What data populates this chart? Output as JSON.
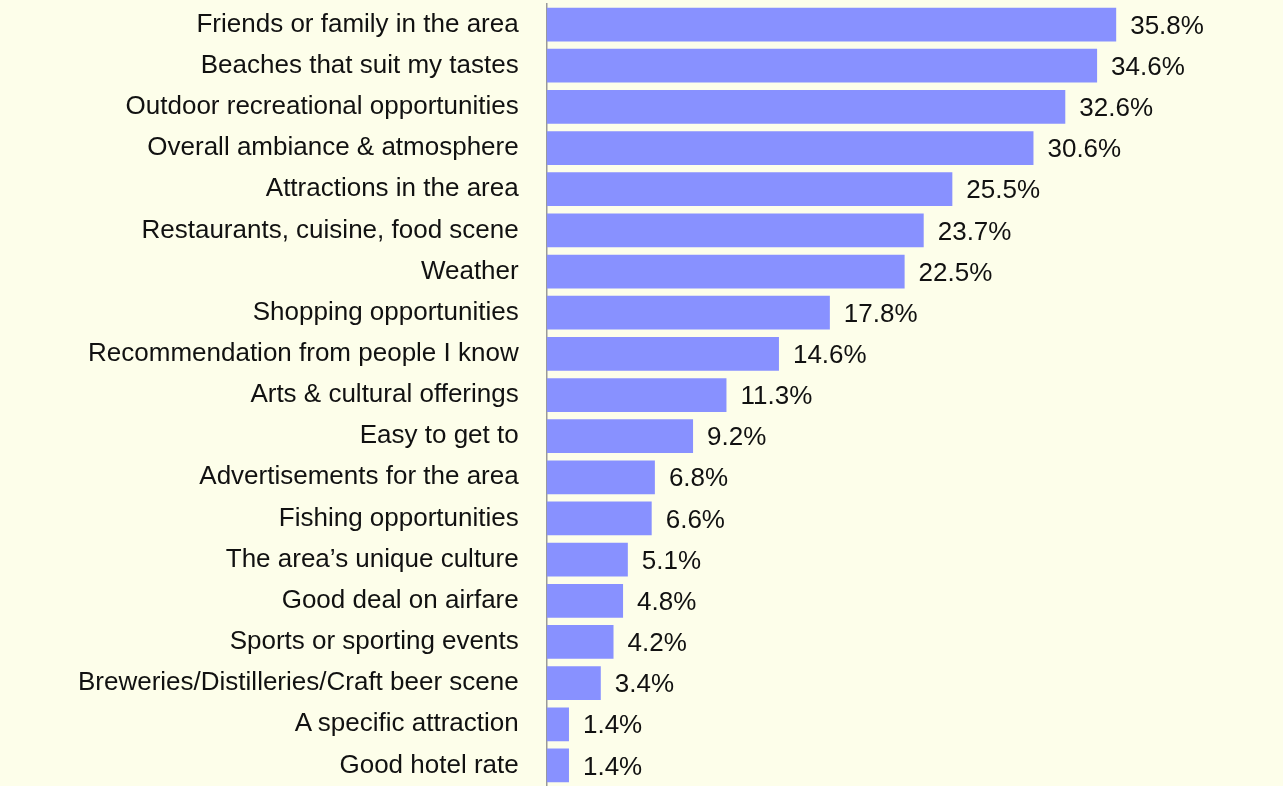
{
  "chart_data": {
    "type": "bar",
    "orientation": "horizontal",
    "categories": [
      "Friends or family in the area",
      "Beaches that suit my tastes",
      "Outdoor recreational opportunities",
      "Overall ambiance & atmosphere",
      "Attractions in the area",
      "Restaurants, cuisine, food scene",
      "Weather",
      "Shopping opportunities",
      "Recommendation from people I know",
      "Arts & cultural offerings",
      "Easy to get to",
      "Advertisements for the area",
      "Fishing opportunities",
      "The area’s unique culture",
      "Good deal on airfare",
      "Sports or sporting events",
      "Breweries/Distilleries/Craft beer scene",
      "A specific attraction",
      "Good hotel rate"
    ],
    "values": [
      35.8,
      34.6,
      32.6,
      30.6,
      25.5,
      23.7,
      22.5,
      17.8,
      14.6,
      11.3,
      9.2,
      6.8,
      6.6,
      5.1,
      4.8,
      4.2,
      3.4,
      1.4,
      1.4
    ],
    "value_labels": [
      "35.8%",
      "34.6%",
      "32.6%",
      "30.6%",
      "25.5%",
      "23.7%",
      "22.5%",
      "17.8%",
      "14.6%",
      "11.3%",
      "9.2%",
      "6.8%",
      "6.6%",
      "5.1%",
      "4.8%",
      "4.2%",
      "3.4%",
      "1.4%",
      "1.4%"
    ],
    "color": "#8891ff",
    "tick_labels": "y",
    "grid": false,
    "legend": false
  }
}
